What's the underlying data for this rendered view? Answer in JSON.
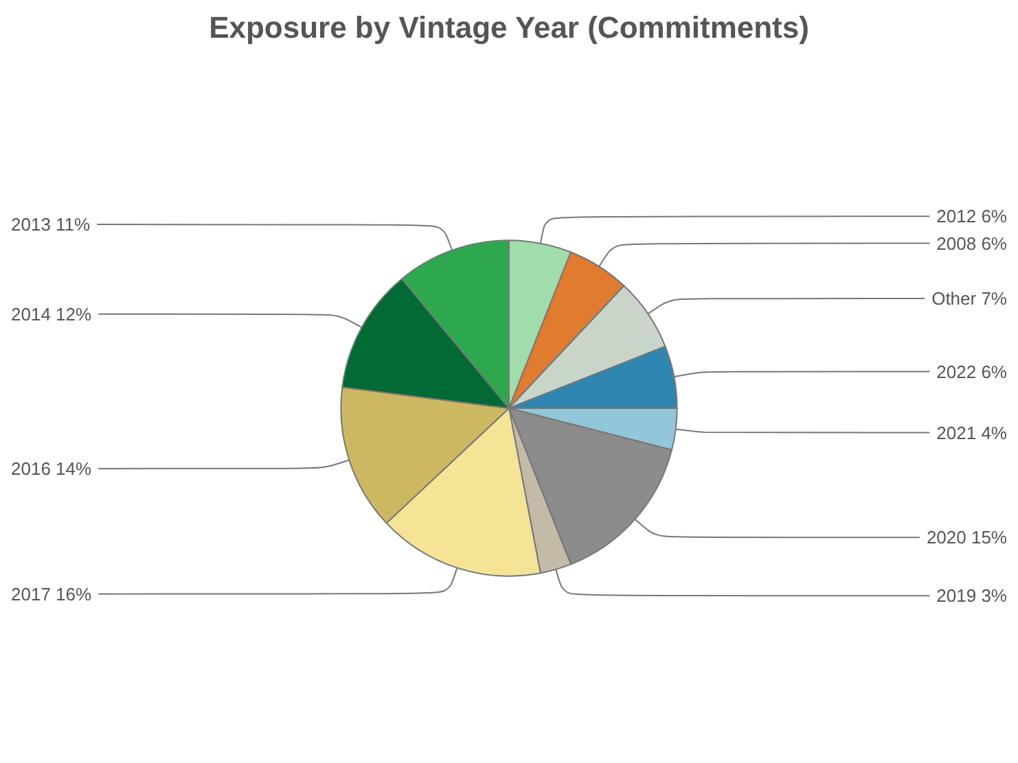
{
  "chart_data": {
    "type": "pie",
    "title": "Exposure by Vintage Year (Commitments)",
    "categories": [
      "2012",
      "2008",
      "Other",
      "2022",
      "2021",
      "2020",
      "2019",
      "2017",
      "2016",
      "2014",
      "2013"
    ],
    "values": [
      6,
      6,
      7,
      6,
      4,
      15,
      3,
      16,
      14,
      12,
      11
    ],
    "value_labels": [
      "6%",
      "6%",
      "7%",
      "6%",
      "4%",
      "15%",
      "3%",
      "16%",
      "14%",
      "12%",
      "11%"
    ],
    "colors": [
      "#a1dcab",
      "#e07b30",
      "#cad5ca",
      "#2e86b0",
      "#92c6d9",
      "#8c8c8c",
      "#c4baa8",
      "#f5e396",
      "#cdb862",
      "#016a35",
      "#2ea84f"
    ],
    "legend": false
  }
}
